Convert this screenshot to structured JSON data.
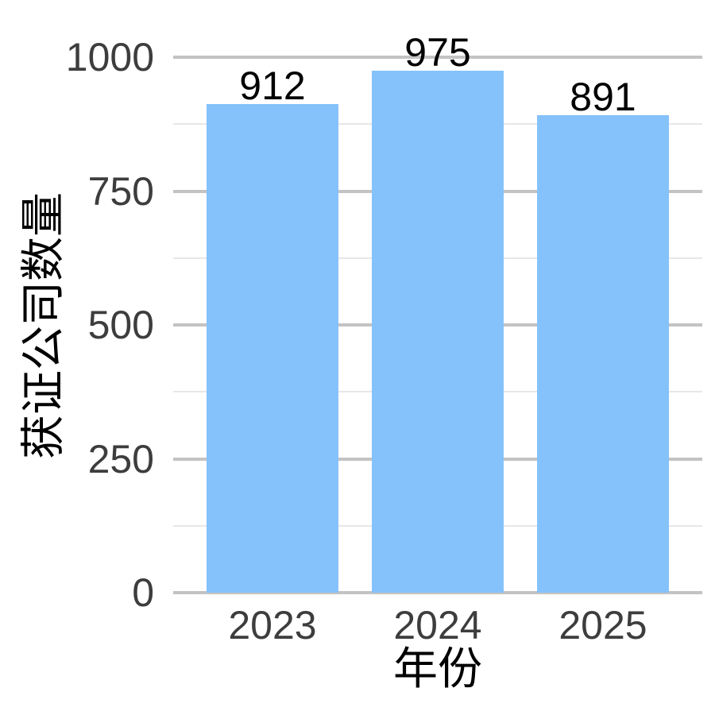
{
  "chart_data": {
    "type": "bar",
    "title": "",
    "xlabel": "年份",
    "ylabel": "获证公司数量",
    "categories": [
      "2023",
      "2024",
      "2025"
    ],
    "values": [
      912,
      975,
      891
    ],
    "ylim": [
      0,
      1000
    ],
    "yticks": [
      0,
      250,
      500,
      750,
      1000
    ],
    "yticks_minor": [
      125,
      375,
      625,
      875
    ],
    "grid": true,
    "legend_position": "none",
    "colors": {
      "bar_fill": "#85C2FB",
      "major_gridline": "#c3c3c3",
      "minor_gridline": "#e7e7e7",
      "tick_label": "#3d3d3d",
      "text": "#000000",
      "background": "#ffffff"
    }
  }
}
